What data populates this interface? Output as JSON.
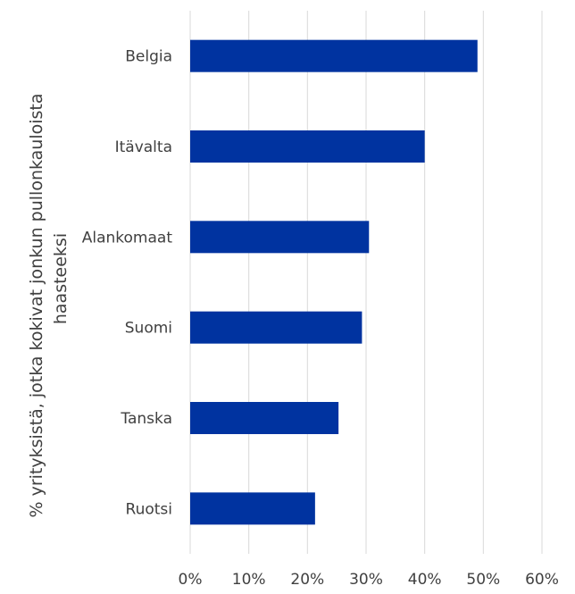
{
  "chart_data": {
    "type": "bar",
    "orientation": "horizontal",
    "categories": [
      "Belgia",
      "Itävalta",
      "Alankomaat",
      "Suomi",
      "Tanska",
      "Ruotsi"
    ],
    "values": [
      0.49,
      0.4,
      0.305,
      0.293,
      0.253,
      0.213
    ],
    "xlim": [
      0,
      0.6
    ],
    "xticks": [
      "0%",
      "10%",
      "20%",
      "30%",
      "40%",
      "50%",
      "60%"
    ],
    "ylabel_lines": [
      "% yrityksistä, jotka kokivat jonkun pullonkauloista",
      "haasteeksi"
    ],
    "grid": "vertical",
    "bar_color": "#0033A0",
    "grid_color": "#d9d9d9",
    "text_color": "#404040"
  }
}
